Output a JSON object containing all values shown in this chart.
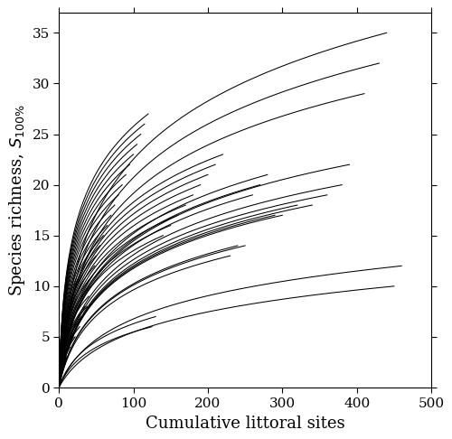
{
  "title": "",
  "xlabel": "Cumulative littoral sites",
  "ylabel": "Species richness, $S_{100\\%}$",
  "xlim": [
    0,
    500
  ],
  "ylim": [
    0,
    37
  ],
  "xticks": [
    0,
    100,
    200,
    300,
    400,
    500
  ],
  "yticks": [
    0,
    5,
    10,
    15,
    20,
    25,
    30,
    35
  ],
  "line_color": "#000000",
  "line_width": 0.75,
  "background_color": "#ffffff",
  "seed": 42,
  "lakes": [
    {
      "n_sites": 440,
      "S_max": 35,
      "shape": 0.12
    },
    {
      "n_sites": 430,
      "S_max": 32,
      "shape": 0.12
    },
    {
      "n_sites": 410,
      "S_max": 29,
      "shape": 0.13
    },
    {
      "n_sites": 460,
      "S_max": 12,
      "shape": 0.05
    },
    {
      "n_sites": 450,
      "S_max": 10,
      "shape": 0.04
    },
    {
      "n_sites": 390,
      "S_max": 22,
      "shape": 0.11
    },
    {
      "n_sites": 380,
      "S_max": 20,
      "shape": 0.1
    },
    {
      "n_sites": 360,
      "S_max": 19,
      "shape": 0.1
    },
    {
      "n_sites": 340,
      "S_max": 18,
      "shape": 0.09
    },
    {
      "n_sites": 320,
      "S_max": 18,
      "shape": 0.09
    },
    {
      "n_sites": 300,
      "S_max": 17,
      "shape": 0.09
    },
    {
      "n_sites": 290,
      "S_max": 17,
      "shape": 0.09
    },
    {
      "n_sites": 280,
      "S_max": 21,
      "shape": 0.12
    },
    {
      "n_sites": 270,
      "S_max": 20,
      "shape": 0.12
    },
    {
      "n_sites": 260,
      "S_max": 19,
      "shape": 0.12
    },
    {
      "n_sites": 250,
      "S_max": 14,
      "shape": 0.08
    },
    {
      "n_sites": 240,
      "S_max": 14,
      "shape": 0.08
    },
    {
      "n_sites": 230,
      "S_max": 13,
      "shape": 0.08
    },
    {
      "n_sites": 220,
      "S_max": 23,
      "shape": 0.18
    },
    {
      "n_sites": 210,
      "S_max": 22,
      "shape": 0.18
    },
    {
      "n_sites": 200,
      "S_max": 21,
      "shape": 0.18
    },
    {
      "n_sites": 190,
      "S_max": 20,
      "shape": 0.18
    },
    {
      "n_sites": 180,
      "S_max": 19,
      "shape": 0.18
    },
    {
      "n_sites": 170,
      "S_max": 18,
      "shape": 0.18
    },
    {
      "n_sites": 160,
      "S_max": 17,
      "shape": 0.18
    },
    {
      "n_sites": 150,
      "S_max": 16,
      "shape": 0.18
    },
    {
      "n_sites": 140,
      "S_max": 15,
      "shape": 0.17
    },
    {
      "n_sites": 130,
      "S_max": 7,
      "shape": 0.07
    },
    {
      "n_sites": 125,
      "S_max": 6,
      "shape": 0.07
    },
    {
      "n_sites": 120,
      "S_max": 27,
      "shape": 0.4
    },
    {
      "n_sites": 115,
      "S_max": 26,
      "shape": 0.4
    },
    {
      "n_sites": 110,
      "S_max": 25,
      "shape": 0.4
    },
    {
      "n_sites": 105,
      "S_max": 24,
      "shape": 0.4
    },
    {
      "n_sites": 100,
      "S_max": 23,
      "shape": 0.4
    },
    {
      "n_sites": 95,
      "S_max": 22,
      "shape": 0.4
    },
    {
      "n_sites": 90,
      "S_max": 21,
      "shape": 0.4
    },
    {
      "n_sites": 85,
      "S_max": 20,
      "shape": 0.4
    },
    {
      "n_sites": 80,
      "S_max": 19,
      "shape": 0.4
    },
    {
      "n_sites": 75,
      "S_max": 18,
      "shape": 0.38
    },
    {
      "n_sites": 70,
      "S_max": 17,
      "shape": 0.38
    },
    {
      "n_sites": 65,
      "S_max": 16,
      "shape": 0.38
    },
    {
      "n_sites": 60,
      "S_max": 15,
      "shape": 0.38
    },
    {
      "n_sites": 55,
      "S_max": 14,
      "shape": 0.38
    },
    {
      "n_sites": 50,
      "S_max": 13,
      "shape": 0.38
    },
    {
      "n_sites": 48,
      "S_max": 12,
      "shape": 0.36
    },
    {
      "n_sites": 45,
      "S_max": 11,
      "shape": 0.36
    },
    {
      "n_sites": 42,
      "S_max": 10,
      "shape": 0.36
    },
    {
      "n_sites": 40,
      "S_max": 9,
      "shape": 0.34
    },
    {
      "n_sites": 38,
      "S_max": 8,
      "shape": 0.3
    },
    {
      "n_sites": 35,
      "S_max": 8,
      "shape": 0.3
    },
    {
      "n_sites": 32,
      "S_max": 7,
      "shape": 0.3
    },
    {
      "n_sites": 30,
      "S_max": 7,
      "shape": 0.3
    },
    {
      "n_sites": 28,
      "S_max": 6,
      "shape": 0.28
    },
    {
      "n_sites": 25,
      "S_max": 6,
      "shape": 0.28
    },
    {
      "n_sites": 22,
      "S_max": 5,
      "shape": 0.28
    },
    {
      "n_sites": 20,
      "S_max": 5,
      "shape": 0.28
    },
    {
      "n_sites": 18,
      "S_max": 5,
      "shape": 0.28
    },
    {
      "n_sites": 15,
      "S_max": 4,
      "shape": 0.28
    },
    {
      "n_sites": 14,
      "S_max": 4,
      "shape": 0.28
    },
    {
      "n_sites": 12,
      "S_max": 4,
      "shape": 0.28
    },
    {
      "n_sites": 11,
      "S_max": 3,
      "shape": 0.28
    },
    {
      "n_sites": 10,
      "S_max": 3,
      "shape": 0.28
    },
    {
      "n_sites": 9,
      "S_max": 3,
      "shape": 0.28
    },
    {
      "n_sites": 8,
      "S_max": 3,
      "shape": 0.28
    },
    {
      "n_sites": 7,
      "S_max": 3,
      "shape": 0.28
    },
    {
      "n_sites": 6,
      "S_max": 2,
      "shape": 0.28
    },
    {
      "n_sites": 5,
      "S_max": 2,
      "shape": 0.28
    },
    {
      "n_sites": 4,
      "S_max": 2,
      "shape": 0.28
    },
    {
      "n_sites": 3,
      "S_max": 2,
      "shape": 0.28
    },
    {
      "n_sites": 2,
      "S_max": 2,
      "shape": 0.28
    },
    {
      "n_sites": 2,
      "S_max": 1,
      "shape": 0.28
    },
    {
      "n_sites": 1,
      "S_max": 1,
      "shape": 0.28
    }
  ]
}
